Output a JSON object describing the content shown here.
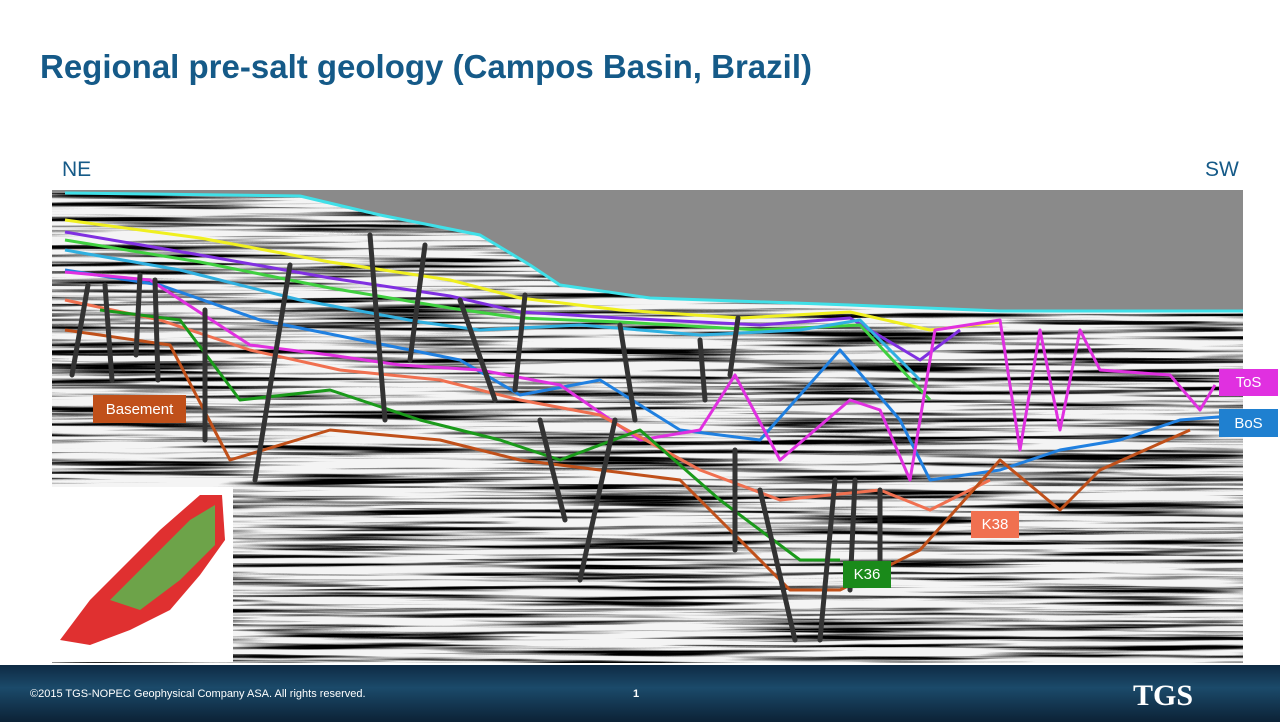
{
  "header": {
    "title": "Regional pre-salt geology (Campos Basin, Brazil)"
  },
  "section": {
    "left_direction": "NE",
    "right_direction": "SW"
  },
  "labels": {
    "basement": "Basement",
    "tos": "ToS",
    "bos": "BoS",
    "k38": "K38",
    "k36": "K36"
  },
  "footer": {
    "copyright": "©2015 TGS-NOPEC Geophysical Company ASA. All rights reserved.",
    "page": "1",
    "logo": "TGS"
  }
}
